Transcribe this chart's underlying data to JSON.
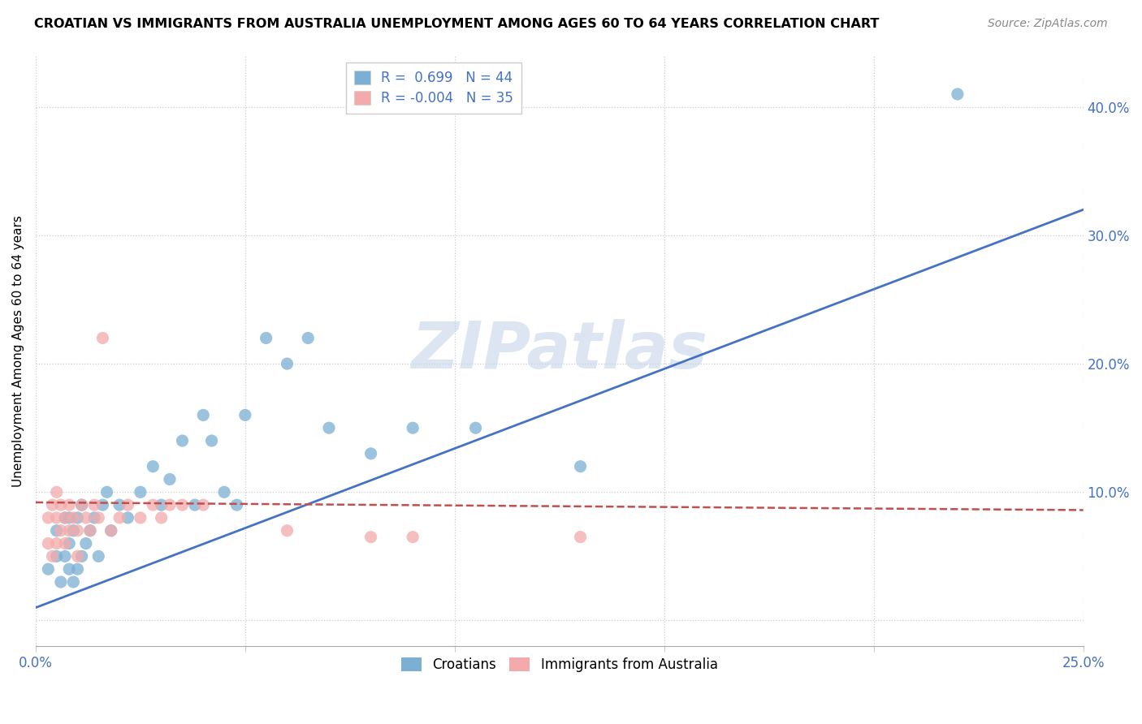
{
  "title": "CROATIAN VS IMMIGRANTS FROM AUSTRALIA UNEMPLOYMENT AMONG AGES 60 TO 64 YEARS CORRELATION CHART",
  "source": "Source: ZipAtlas.com",
  "ylabel": "Unemployment Among Ages 60 to 64 years",
  "xlim": [
    0.0,
    0.25
  ],
  "ylim": [
    -0.02,
    0.44
  ],
  "xticks": [
    0.0,
    0.05,
    0.1,
    0.15,
    0.2,
    0.25
  ],
  "xtick_labels": [
    "0.0%",
    "",
    "",
    "",
    "",
    "25.0%"
  ],
  "yticks": [
    0.0,
    0.1,
    0.2,
    0.3,
    0.4
  ],
  "ytick_labels": [
    "",
    "10.0%",
    "20.0%",
    "30.0%",
    "40.0%"
  ],
  "croatians_R": 0.699,
  "croatians_N": 44,
  "australia_R": -0.004,
  "australia_N": 35,
  "blue_color": "#7BAFD4",
  "pink_color": "#F4AAAA",
  "blue_line_color": "#4472C4",
  "pink_line_color": "#C0504D",
  "watermark": "ZIPatlas",
  "watermark_color": "#C5D5E8",
  "blue_line_x0": 0.0,
  "blue_line_y0": 0.01,
  "blue_line_x1": 0.25,
  "blue_line_y1": 0.32,
  "pink_line_x0": 0.0,
  "pink_line_y0": 0.092,
  "pink_line_x1": 0.25,
  "pink_line_y1": 0.086,
  "blue_scatter_x": [
    0.003,
    0.005,
    0.005,
    0.006,
    0.007,
    0.007,
    0.008,
    0.008,
    0.008,
    0.009,
    0.009,
    0.01,
    0.01,
    0.011,
    0.011,
    0.012,
    0.013,
    0.014,
    0.015,
    0.016,
    0.017,
    0.018,
    0.02,
    0.022,
    0.025,
    0.028,
    0.03,
    0.032,
    0.035,
    0.038,
    0.04,
    0.042,
    0.045,
    0.048,
    0.05,
    0.055,
    0.06,
    0.065,
    0.07,
    0.08,
    0.09,
    0.105,
    0.13,
    0.22
  ],
  "blue_scatter_y": [
    0.04,
    0.05,
    0.07,
    0.03,
    0.05,
    0.08,
    0.04,
    0.06,
    0.08,
    0.03,
    0.07,
    0.04,
    0.08,
    0.05,
    0.09,
    0.06,
    0.07,
    0.08,
    0.05,
    0.09,
    0.1,
    0.07,
    0.09,
    0.08,
    0.1,
    0.12,
    0.09,
    0.11,
    0.14,
    0.09,
    0.16,
    0.14,
    0.1,
    0.09,
    0.16,
    0.22,
    0.2,
    0.22,
    0.15,
    0.13,
    0.15,
    0.15,
    0.12,
    0.41
  ],
  "pink_scatter_x": [
    0.003,
    0.003,
    0.004,
    0.004,
    0.005,
    0.005,
    0.005,
    0.006,
    0.006,
    0.007,
    0.007,
    0.008,
    0.008,
    0.009,
    0.01,
    0.01,
    0.011,
    0.012,
    0.013,
    0.014,
    0.015,
    0.016,
    0.018,
    0.02,
    0.022,
    0.025,
    0.028,
    0.03,
    0.032,
    0.035,
    0.04,
    0.06,
    0.08,
    0.09,
    0.13
  ],
  "pink_scatter_y": [
    0.06,
    0.08,
    0.05,
    0.09,
    0.06,
    0.08,
    0.1,
    0.07,
    0.09,
    0.06,
    0.08,
    0.07,
    0.09,
    0.08,
    0.05,
    0.07,
    0.09,
    0.08,
    0.07,
    0.09,
    0.08,
    0.22,
    0.07,
    0.08,
    0.09,
    0.08,
    0.09,
    0.08,
    0.09,
    0.09,
    0.09,
    0.07,
    0.065,
    0.065,
    0.065
  ]
}
